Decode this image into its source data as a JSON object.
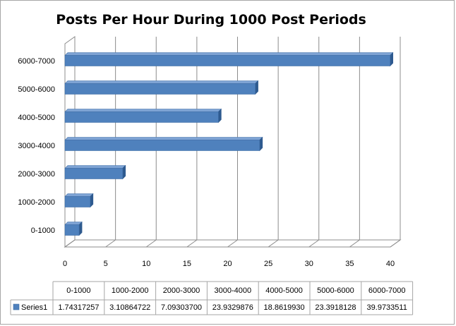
{
  "chart_data": {
    "type": "bar",
    "orientation": "horizontal",
    "title": "Posts Per Hour During 1000 Post Periods",
    "xlabel": "",
    "ylabel": "",
    "categories": [
      "0-1000",
      "1000-2000",
      "2000-3000",
      "3000-4000",
      "4000-5000",
      "5000-6000",
      "6000-7000"
    ],
    "series": [
      {
        "name": "Series1",
        "values": [
          1.74317257,
          3.10864722,
          7.093037,
          23.9329876,
          18.861993,
          23.3918128,
          39.9733511
        ],
        "value_labels": [
          "1.74317257",
          "3.10864722",
          "7.09303700",
          "23.9329876",
          "18.8619930",
          "23.3918128",
          "39.9733511"
        ],
        "color": "#4f81bd"
      }
    ],
    "xlim": [
      0,
      40
    ],
    "xticks": [
      0,
      5,
      10,
      15,
      20,
      25,
      30,
      35,
      40
    ],
    "grid": true,
    "legend": "data-table-bottom"
  }
}
